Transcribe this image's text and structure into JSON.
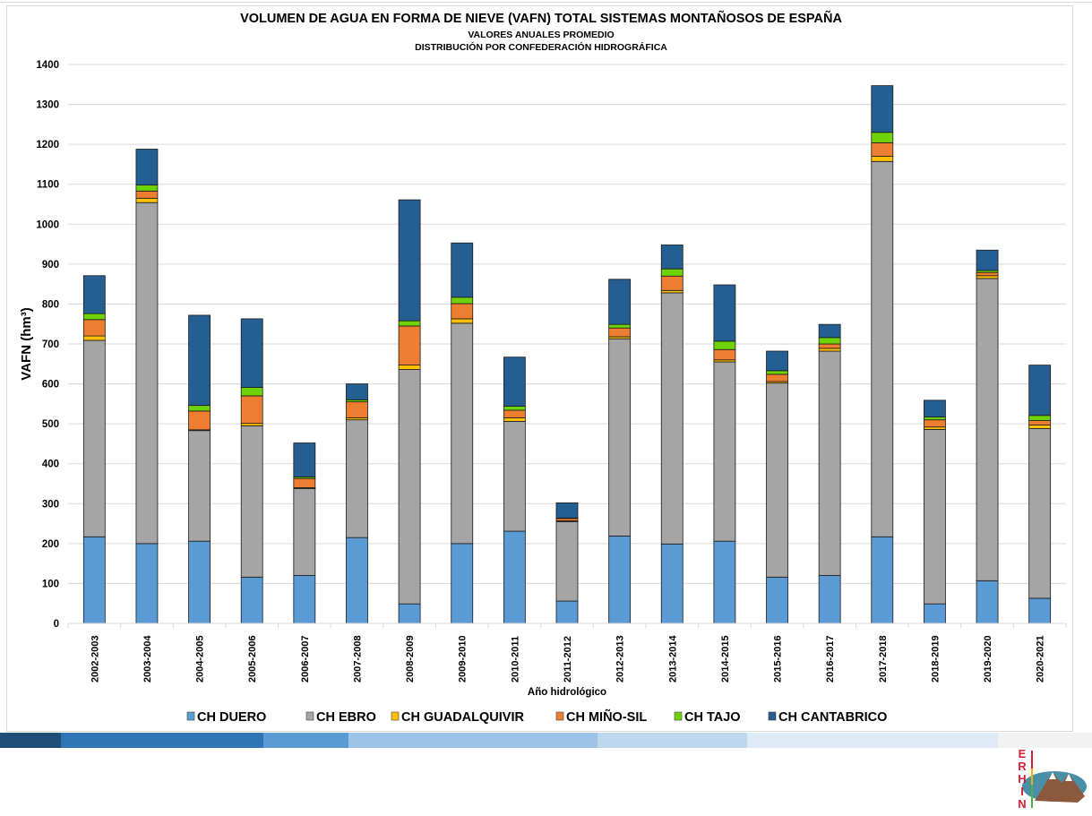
{
  "chart_data": {
    "type": "bar",
    "stacked": true,
    "title": "VOLUMEN DE AGUA EN FORMA DE NIEVE (VAFN) TOTAL SISTEMAS MONTAÑOSOS DE ESPAÑA",
    "subtitle_1": "VALORES ANUALES PROMEDIO",
    "subtitle_2": "DISTRIBUCIÓN POR CONFEDERACIÓN HIDROGRÁFICA",
    "xlabel": "Año hidrológico",
    "ylabel": "VAFN (hm³)",
    "ylim": [
      0,
      1400
    ],
    "yticks": [
      0,
      100,
      200,
      300,
      400,
      500,
      600,
      700,
      800,
      900,
      1000,
      1100,
      1200,
      1300,
      1400
    ],
    "grid": true,
    "legend_position": "bottom",
    "categories": [
      "2002-2003",
      "2003-2004",
      "2004-2005",
      "2005-2006",
      "2006-2007",
      "2007-2008",
      "2008-2009",
      "2009-2010",
      "2010-2011",
      "2011-2012",
      "2012-2013",
      "2013-2014",
      "2014-2015",
      "2015-2016",
      "2016-2017",
      "2017-2018",
      "2018-2019",
      "2019-2020",
      "2020-2021"
    ],
    "series": [
      {
        "name": "CH DUERO",
        "color": "#5b9bd5",
        "values": [
          217,
          200,
          206,
          116,
          120,
          215,
          49,
          200,
          231,
          56,
          219,
          199,
          206,
          116,
          120,
          217,
          49,
          107,
          63
        ]
      },
      {
        "name": "CH EBRO",
        "color": "#a5a5a5",
        "values": [
          492,
          854,
          277,
          379,
          218,
          295,
          587,
          552,
          275,
          199,
          494,
          629,
          449,
          486,
          562,
          940,
          437,
          757,
          425
        ]
      },
      {
        "name": "CH GUADALQUIVIR",
        "color": "#ffc000",
        "values": [
          11,
          11,
          2,
          6,
          2,
          5,
          11,
          11,
          9,
          2,
          5,
          6,
          5,
          4,
          7,
          13,
          6,
          7,
          9
        ]
      },
      {
        "name": "CH MIÑO-SIL",
        "color": "#ed7d31",
        "values": [
          41,
          18,
          47,
          69,
          23,
          40,
          98,
          38,
          19,
          6,
          22,
          36,
          26,
          18,
          11,
          34,
          18,
          8,
          11
        ]
      },
      {
        "name": "CH TAJO",
        "color": "#70d30a",
        "values": [
          15,
          15,
          14,
          21,
          4,
          5,
          13,
          16,
          10,
          1,
          9,
          18,
          21,
          9,
          16,
          26,
          7,
          5,
          13
        ]
      },
      {
        "name": "CH CANTABRICO",
        "color": "#255e91",
        "values": [
          95,
          90,
          226,
          172,
          85,
          40,
          303,
          136,
          123,
          38,
          113,
          60,
          141,
          49,
          33,
          117,
          42,
          51,
          126
        ]
      }
    ]
  },
  "footer_band_colors": [
    "#1f4e79",
    "#2e75b6",
    "#5b9bd5",
    "#9dc3e6",
    "#bdd7ee",
    "#deebf7",
    "#f2f2f2"
  ],
  "logo": {
    "letters": [
      "E",
      "R",
      "H",
      "I",
      "N"
    ],
    "icon": "erhin-mountain-logo"
  }
}
